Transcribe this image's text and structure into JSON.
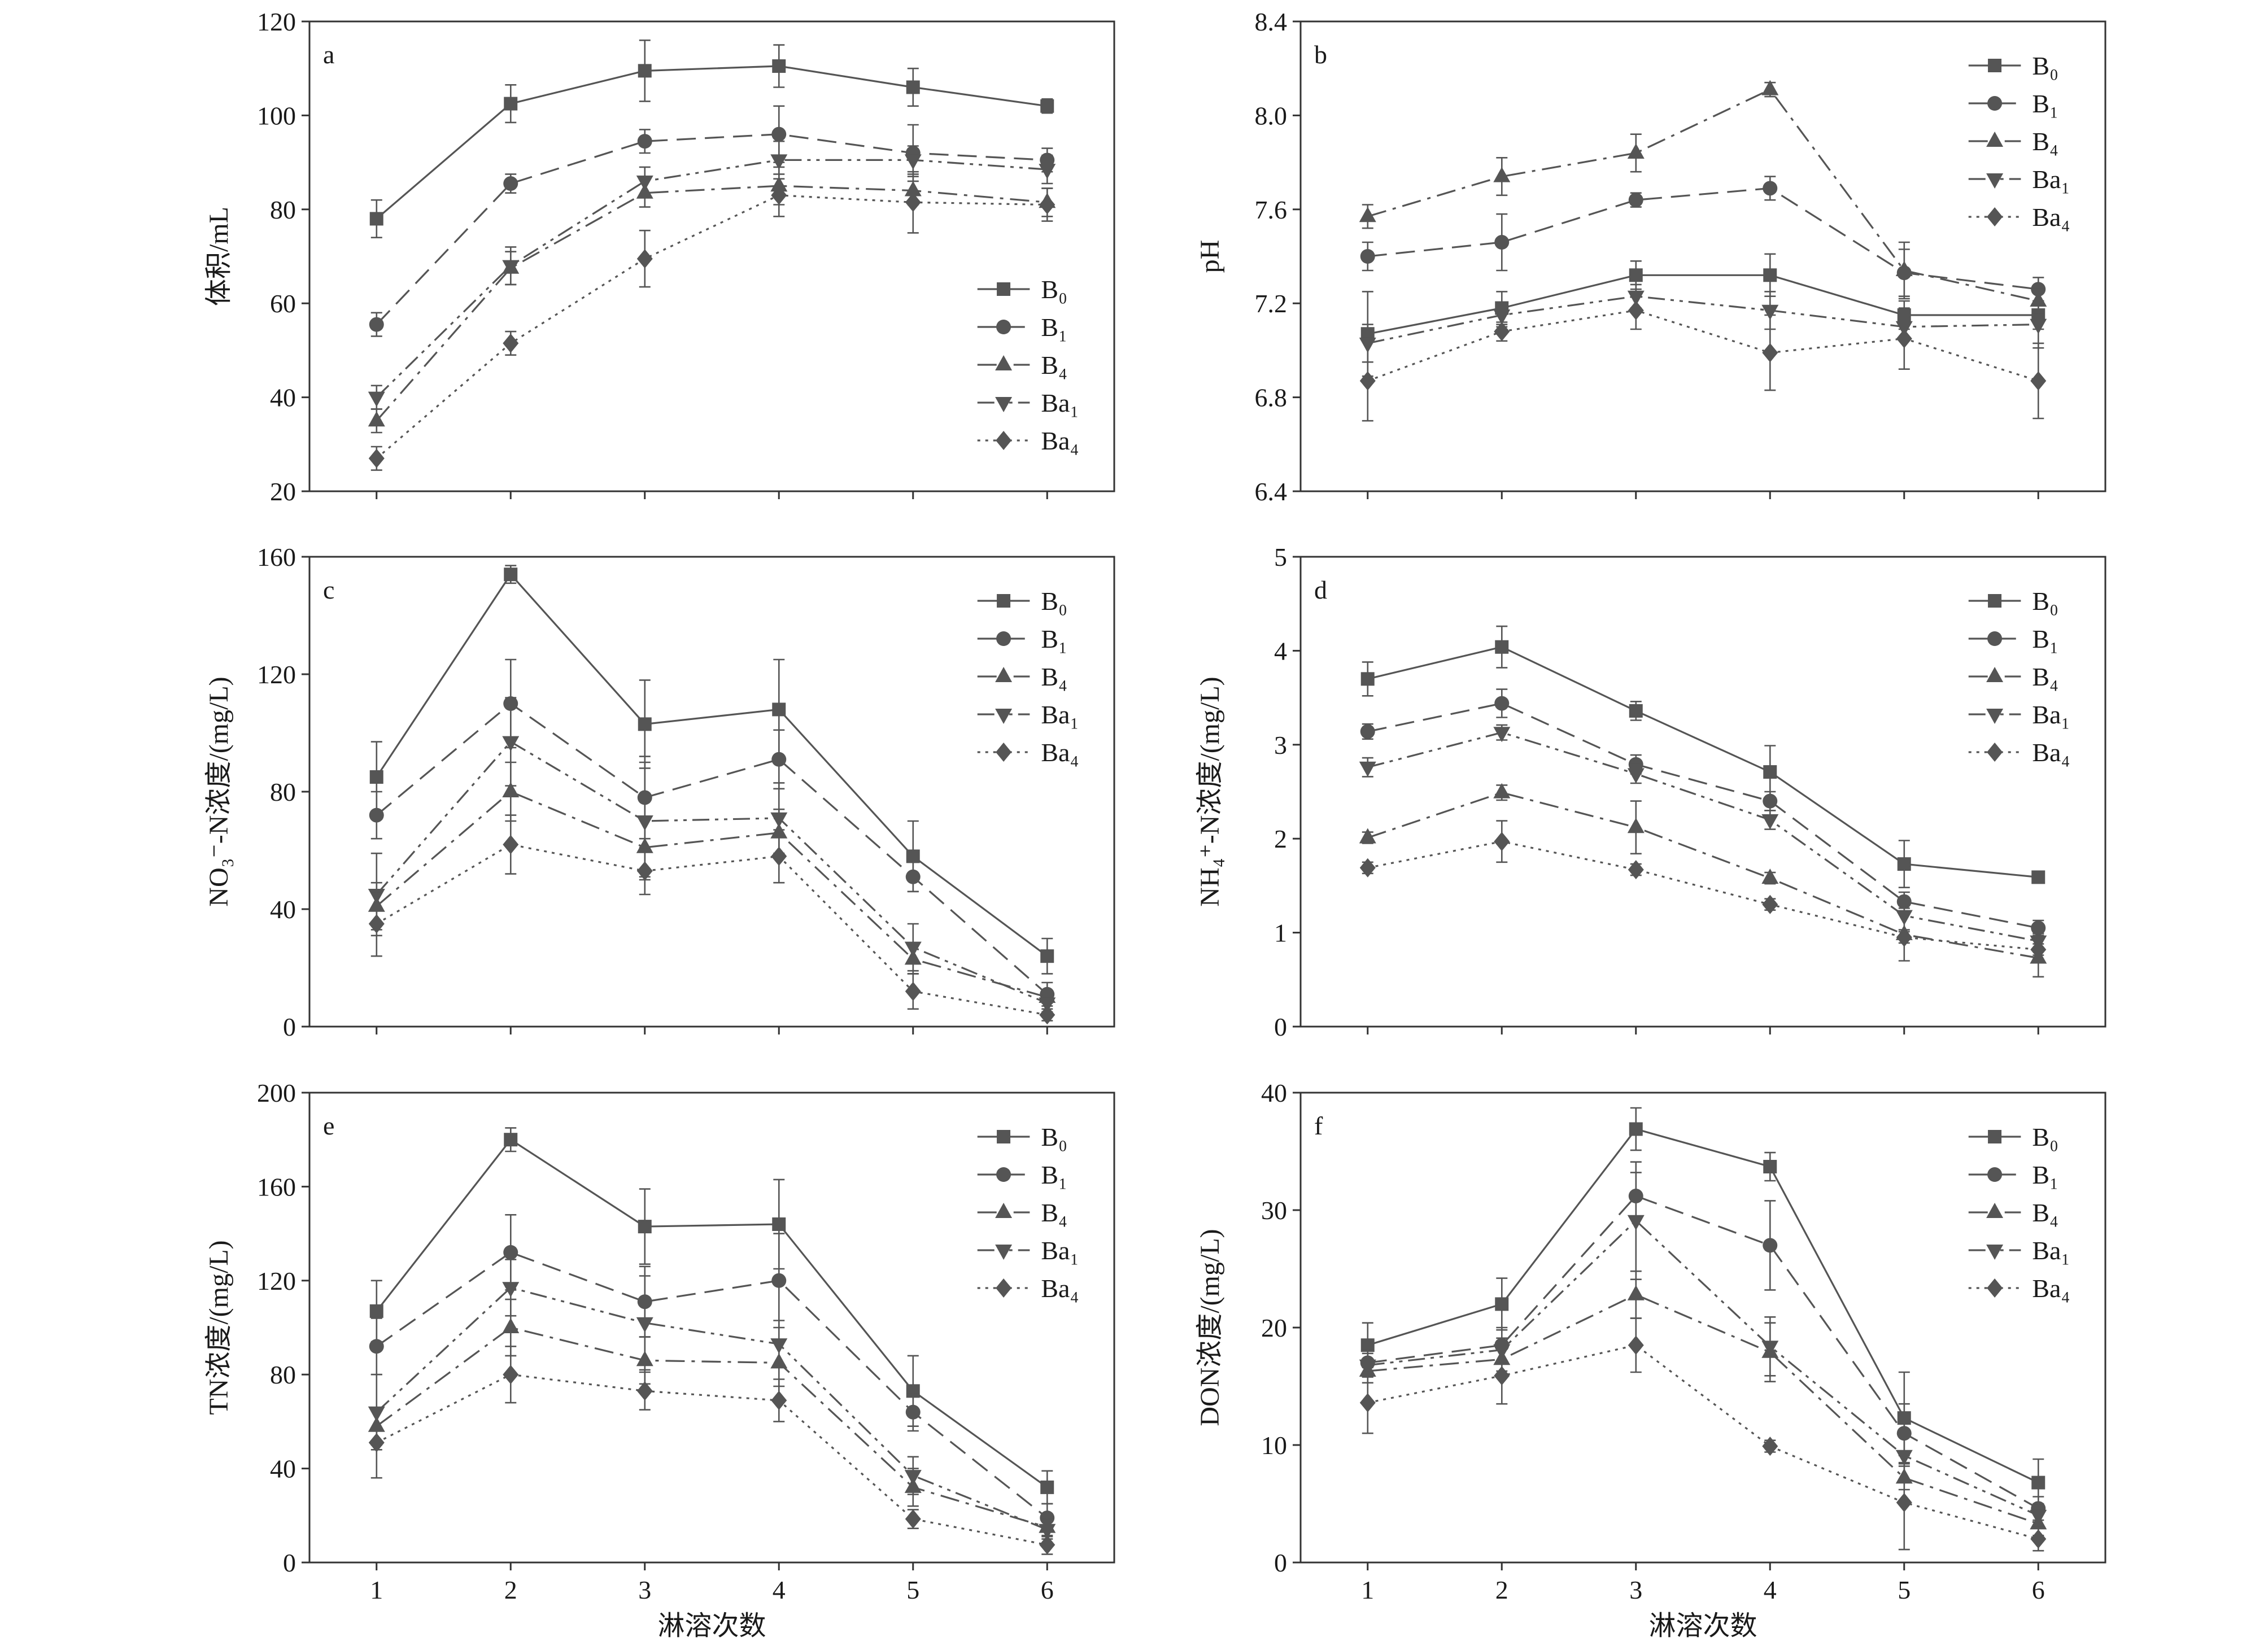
{
  "colors": {
    "series": "#555555",
    "axis": "#333333",
    "background": "#ffffff"
  },
  "chart_data": [
    {
      "panel_label": "a",
      "type": "line",
      "ylabel": "体积/mL",
      "x": [
        1,
        2,
        3,
        4,
        5,
        6
      ],
      "xlim": [
        0.5,
        6.5
      ],
      "ylim": [
        20,
        120
      ],
      "yticks": [
        "20",
        "40",
        "60",
        "80",
        "100",
        "120"
      ],
      "grid": false,
      "legend_position": "bottom-right",
      "series": [
        {
          "name": "B₀",
          "marker": "square",
          "linestyle": "solid",
          "values": [
            78,
            102.5,
            109.5,
            110.5,
            106,
            102
          ],
          "errors": [
            4,
            4,
            6.5,
            4.5,
            4,
            1.5
          ]
        },
        {
          "name": "B₁",
          "marker": "circle",
          "linestyle": "dashed",
          "values": [
            55.5,
            85.5,
            94.5,
            96,
            92,
            90.5
          ],
          "errors": [
            2.5,
            2,
            2.5,
            6,
            6,
            2.5
          ]
        },
        {
          "name": "B₄",
          "marker": "triangle-up",
          "linestyle": "dash-dot",
          "values": [
            35,
            67.5,
            83.5,
            85,
            84,
            81.5
          ],
          "errors": [
            2.5,
            3.5,
            3,
            4,
            3,
            3
          ]
        },
        {
          "name": "Ba₁",
          "marker": "triangle-down",
          "linestyle": "dash-dot-dot",
          "values": [
            40,
            68,
            86,
            90.5,
            90.5,
            88.5
          ],
          "errors": [
            2.5,
            4,
            3,
            4,
            3,
            3
          ]
        },
        {
          "name": "Ba₄",
          "marker": "diamond",
          "linestyle": "dotted",
          "values": [
            27,
            51.5,
            69.5,
            83,
            81.5,
            81
          ],
          "errors": [
            2.5,
            2.5,
            6,
            4.5,
            6.5,
            3.5
          ]
        }
      ]
    },
    {
      "panel_label": "b",
      "type": "line",
      "ylabel": "pH",
      "x": [
        1,
        2,
        3,
        4,
        5,
        6
      ],
      "xlim": [
        0.5,
        6.5
      ],
      "ylim": [
        6.4,
        8.4
      ],
      "yticks": [
        "6.4",
        "6.8",
        "7.2",
        "7.6",
        "8.0",
        "8.4"
      ],
      "grid": false,
      "legend_position": "top-right",
      "series": [
        {
          "name": "B₀",
          "marker": "square",
          "linestyle": "solid",
          "values": [
            7.07,
            7.18,
            7.32,
            7.32,
            7.15,
            7.15
          ],
          "errors": [
            0.18,
            0.07,
            0.06,
            0.09,
            0.06,
            0.06
          ]
        },
        {
          "name": "B₁",
          "marker": "circle",
          "linestyle": "dashed",
          "values": [
            7.4,
            7.46,
            7.64,
            7.69,
            7.33,
            7.26
          ],
          "errors": [
            0.06,
            0.12,
            0.03,
            0.05,
            0.1,
            0.05
          ]
        },
        {
          "name": "B₄",
          "marker": "triangle-up",
          "linestyle": "dash-dot",
          "values": [
            7.57,
            7.74,
            7.84,
            8.11,
            7.34,
            7.21
          ],
          "errors": [
            0.05,
            0.08,
            0.08,
            0.03,
            0.12,
            0.05
          ]
        },
        {
          "name": "Ba₁",
          "marker": "triangle-down",
          "linestyle": "dash-dot-dot",
          "values": [
            7.03,
            7.15,
            7.23,
            7.17,
            7.1,
            7.11
          ],
          "errors": [
            0.08,
            0.05,
            0.05,
            0.08,
            0.05,
            0.1
          ]
        },
        {
          "name": "Ba₄",
          "marker": "diamond",
          "linestyle": "dotted",
          "values": [
            6.87,
            7.08,
            7.17,
            6.99,
            7.05,
            6.87
          ],
          "errors": [
            0.17,
            0.04,
            0.08,
            0.16,
            0.13,
            0.16
          ]
        }
      ]
    },
    {
      "panel_label": "c",
      "type": "line",
      "ylabel": "NO₃⁻-N浓度/(mg/L)",
      "x": [
        1,
        2,
        3,
        4,
        5,
        6
      ],
      "xlim": [
        0.5,
        6.5
      ],
      "ylim": [
        0,
        160
      ],
      "yticks": [
        "0",
        "40",
        "80",
        "120",
        "160"
      ],
      "grid": false,
      "legend_position": "top-right",
      "series": [
        {
          "name": "B₀",
          "marker": "square",
          "linestyle": "solid",
          "values": [
            85,
            154,
            103,
            108,
            58,
            24
          ],
          "errors": [
            12,
            3,
            15,
            17,
            12,
            6
          ]
        },
        {
          "name": "B₁",
          "marker": "circle",
          "linestyle": "dashed",
          "values": [
            72,
            110,
            78,
            91,
            51,
            11
          ],
          "errors": [
            8,
            15,
            14,
            10,
            5,
            4
          ]
        },
        {
          "name": "B₄",
          "marker": "triangle-up",
          "linestyle": "dash-dot",
          "values": [
            41,
            80,
            61,
            66,
            23,
            10
          ],
          "errors": [
            8,
            10,
            10,
            8,
            5,
            2
          ]
        },
        {
          "name": "Ba₁",
          "marker": "triangle-down",
          "linestyle": "dash-dot-dot",
          "values": [
            45,
            97,
            70,
            71,
            27,
            8
          ],
          "errors": [
            14,
            15,
            20,
            12,
            8,
            3
          ]
        },
        {
          "name": "Ba₄",
          "marker": "diamond",
          "linestyle": "dotted",
          "values": [
            35,
            62,
            53,
            58,
            12,
            4
          ],
          "errors": [
            11,
            10,
            8,
            9,
            6,
            2
          ]
        }
      ]
    },
    {
      "panel_label": "d",
      "type": "line",
      "ylabel": "NH₄⁺-N浓度/(mg/L)",
      "x": [
        1,
        2,
        3,
        4,
        5,
        6
      ],
      "xlim": [
        0.5,
        6.5
      ],
      "ylim": [
        0,
        5
      ],
      "yticks": [
        "0",
        "1",
        "2",
        "3",
        "4",
        "5"
      ],
      "grid": false,
      "legend_position": "top-right",
      "series": [
        {
          "name": "B₀",
          "marker": "square",
          "linestyle": "solid",
          "values": [
            3.7,
            4.04,
            3.36,
            2.71,
            1.73,
            1.59
          ],
          "errors": [
            0.18,
            0.22,
            0.1,
            0.28,
            0.25,
            0.06
          ]
        },
        {
          "name": "B₁",
          "marker": "circle",
          "linestyle": "dashed",
          "values": [
            3.14,
            3.44,
            2.79,
            2.4,
            1.33,
            1.05
          ],
          "errors": [
            0.08,
            0.15,
            0.1,
            0.1,
            0.1,
            0.08
          ]
        },
        {
          "name": "B₄",
          "marker": "triangle-up",
          "linestyle": "dash-dot",
          "values": [
            2.01,
            2.49,
            2.12,
            1.58,
            0.98,
            0.73
          ],
          "errors": [
            0.06,
            0.08,
            0.28,
            0.06,
            0.28,
            0.2
          ]
        },
        {
          "name": "Ba₁",
          "marker": "triangle-down",
          "linestyle": "dash-dot-dot",
          "values": [
            2.76,
            3.13,
            2.69,
            2.2,
            1.18,
            0.91
          ],
          "errors": [
            0.1,
            0.08,
            0.1,
            0.1,
            0.15,
            0.08
          ]
        },
        {
          "name": "Ba₄",
          "marker": "diamond",
          "linestyle": "dotted",
          "values": [
            1.69,
            1.97,
            1.67,
            1.3,
            0.95,
            0.82
          ],
          "errors": [
            0.06,
            0.22,
            0.06,
            0.06,
            0.06,
            0.06
          ]
        }
      ]
    },
    {
      "panel_label": "e",
      "type": "line",
      "ylabel": "TN浓度/(mg/L)",
      "xlabel": "淋溶次数",
      "x": [
        1,
        2,
        3,
        4,
        5,
        6
      ],
      "xticks": [
        "1",
        "2",
        "3",
        "4",
        "5",
        "6"
      ],
      "xlim": [
        0.5,
        6.5
      ],
      "ylim": [
        0,
        200
      ],
      "yticks": [
        "0",
        "40",
        "80",
        "120",
        "160",
        "200"
      ],
      "grid": false,
      "legend_position": "top-right",
      "series": [
        {
          "name": "B₀",
          "marker": "square",
          "linestyle": "solid",
          "values": [
            107,
            180,
            143,
            144,
            73,
            32
          ],
          "errors": [
            13,
            5,
            16,
            19,
            15,
            7
          ]
        },
        {
          "name": "B₁",
          "marker": "circle",
          "linestyle": "dashed",
          "values": [
            92,
            132,
            111,
            120,
            64,
            19
          ],
          "errors": [
            12,
            16,
            15,
            20,
            8,
            6
          ]
        },
        {
          "name": "B₄",
          "marker": "triangle-up",
          "linestyle": "dash-dot",
          "values": [
            58,
            100,
            86,
            85,
            32,
            15
          ],
          "errors": [
            8,
            12,
            10,
            10,
            8,
            4
          ]
        },
        {
          "name": "Ba₁",
          "marker": "triangle-down",
          "linestyle": "dash-dot-dot",
          "values": [
            64,
            117,
            102,
            93,
            37,
            14
          ],
          "errors": [
            16,
            12,
            20,
            10,
            8,
            4
          ]
        },
        {
          "name": "Ba₄",
          "marker": "diamond",
          "linestyle": "dotted",
          "values": [
            51,
            80,
            73,
            69,
            18.5,
            7.5
          ],
          "errors": [
            15,
            12,
            8,
            9,
            4,
            4
          ]
        }
      ]
    },
    {
      "panel_label": "f",
      "type": "line",
      "ylabel": "DON浓度/(mg/L)",
      "xlabel": "淋溶次数",
      "x": [
        1,
        2,
        3,
        4,
        5,
        6
      ],
      "xticks": [
        "1",
        "2",
        "3",
        "4",
        "5",
        "6"
      ],
      "xlim": [
        0.5,
        6.5
      ],
      "ylim": [
        0,
        40
      ],
      "yticks": [
        "0",
        "10",
        "20",
        "30",
        "40"
      ],
      "grid": false,
      "legend_position": "top-right",
      "series": [
        {
          "name": "B₀",
          "marker": "square",
          "linestyle": "solid",
          "values": [
            18.5,
            22,
            36.9,
            33.7,
            12.3,
            6.8
          ],
          "errors": [
            1.9,
            2.2,
            1.8,
            1.2,
            3.9,
            2
          ]
        },
        {
          "name": "B₁",
          "marker": "circle",
          "linestyle": "dashed",
          "values": [
            17,
            18.5,
            31.2,
            27,
            11,
            4.6
          ],
          "errors": [
            1.2,
            1.5,
            2,
            3.8,
            2.5,
            1
          ]
        },
        {
          "name": "B₄",
          "marker": "triangle-up",
          "linestyle": "dash-dot",
          "values": [
            16.3,
            17.3,
            22.8,
            17.9,
            7.2,
            3.3
          ],
          "errors": [
            1,
            1,
            2,
            2.5,
            1,
            1
          ]
        },
        {
          "name": "Ba₁",
          "marker": "triangle-down",
          "linestyle": "dash-dot-dot",
          "values": [
            16.8,
            18.1,
            29.1,
            18.4,
            9.1,
            4
          ],
          "errors": [
            1,
            1,
            5,
            2.5,
            2,
            1
          ]
        },
        {
          "name": "Ba₄",
          "marker": "diamond",
          "linestyle": "dotted",
          "values": [
            13.6,
            15.9,
            18.5,
            9.9,
            5.1,
            2
          ],
          "errors": [
            2.6,
            2.4,
            2.3,
            0.5,
            4,
            1
          ]
        }
      ]
    }
  ]
}
